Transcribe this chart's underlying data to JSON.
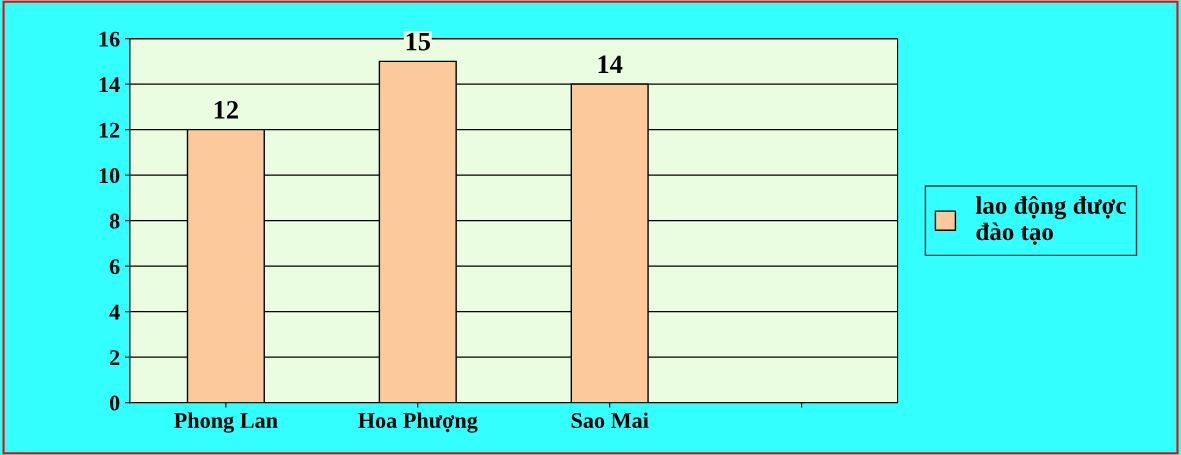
{
  "chart_data": {
    "type": "bar",
    "categories": [
      "Phong Lan",
      "Hoa Phượng",
      "Sao Mai",
      null
    ],
    "series": [
      {
        "name": "lao động được\nđào tạo",
        "color": "#fcc99a",
        "values": [
          12,
          15,
          14,
          null
        ]
      }
    ],
    "ylim": [
      0,
      16
    ],
    "yticks": [
      0,
      2,
      4,
      6,
      8,
      10,
      12,
      14,
      16
    ],
    "grid": "y",
    "legend": "right",
    "data_labels": true
  }
}
